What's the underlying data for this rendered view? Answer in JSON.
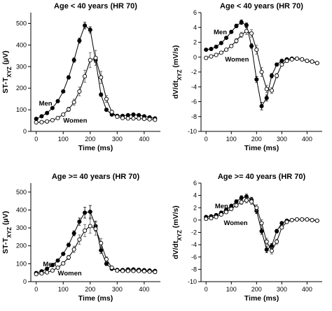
{
  "chart_data": [
    {
      "type": "scatter",
      "title": "Age < 40 years (HR 70)",
      "xlabel": "Time (ms)",
      "ylabel_main": "ST-T",
      "ylabel_sub": "XYZ",
      "ylabel_unit": " (µV)",
      "xlim": [
        -20,
        460
      ],
      "ylim": [
        0,
        550
      ],
      "xticks": [
        0,
        100,
        200,
        300,
        400
      ],
      "yticks": [
        0,
        100,
        200,
        300,
        400,
        500
      ],
      "grid": false,
      "series": [
        {
          "name": "Men",
          "marker": "filled",
          "color": "#000000",
          "x": [
            0,
            20,
            40,
            60,
            80,
            100,
            120,
            140,
            160,
            180,
            200,
            220,
            240,
            260,
            280,
            300,
            320,
            340,
            360,
            380,
            400,
            420,
            440
          ],
          "y": [
            58,
            70,
            85,
            108,
            140,
            185,
            250,
            330,
            420,
            490,
            470,
            330,
            170,
            100,
            78,
            72,
            72,
            75,
            78,
            75,
            70,
            65,
            60
          ],
          "err": [
            3,
            3,
            3,
            4,
            5,
            6,
            8,
            10,
            12,
            15,
            14,
            12,
            8,
            5,
            4,
            3,
            4,
            4,
            4,
            3,
            3,
            3,
            3
          ]
        },
        {
          "name": "Women",
          "marker": "open",
          "color": "#000000",
          "x": [
            0,
            20,
            40,
            60,
            80,
            100,
            120,
            140,
            160,
            180,
            200,
            220,
            240,
            260,
            280,
            300,
            320,
            340,
            360,
            380,
            400,
            420,
            440
          ],
          "y": [
            42,
            43,
            46,
            52,
            62,
            78,
            102,
            135,
            185,
            255,
            330,
            340,
            250,
            150,
            90,
            68,
            62,
            60,
            60,
            60,
            58,
            56,
            54
          ],
          "err": [
            3,
            3,
            3,
            4,
            5,
            6,
            10,
            14,
            20,
            28,
            35,
            35,
            28,
            16,
            8,
            5,
            4,
            4,
            4,
            3,
            3,
            3,
            3
          ]
        }
      ],
      "labels": [
        {
          "text": "Men",
          "x": 10,
          "y": 120
        },
        {
          "text": "Women",
          "x": 100,
          "y": 40
        }
      ]
    },
    {
      "type": "scatter",
      "title": "Age < 40 years (HR 70)",
      "xlabel": "Time (ms)",
      "ylabel_main": "dV/dt",
      "ylabel_sub": "XYZ",
      "ylabel_unit": " (mV/s)",
      "xlim": [
        -20,
        460
      ],
      "ylim": [
        -10,
        6
      ],
      "xticks": [
        0,
        100,
        200,
        300,
        400
      ],
      "yticks": [
        -10,
        -8,
        -6,
        -4,
        -2,
        0,
        2,
        4,
        6
      ],
      "grid": false,
      "series": [
        {
          "name": "Men",
          "marker": "filled",
          "color": "#000000",
          "x": [
            0,
            20,
            40,
            60,
            80,
            100,
            120,
            140,
            160,
            180,
            200,
            220,
            240,
            260,
            280,
            300,
            320,
            340,
            360,
            380,
            400,
            420,
            440
          ],
          "y": [
            1.0,
            1.1,
            1.4,
            1.9,
            2.6,
            3.4,
            4.2,
            4.7,
            4.3,
            1.5,
            -3.0,
            -6.6,
            -5.5,
            -2.5,
            -1.0,
            -0.5,
            -0.3,
            -0.2,
            -0.2,
            -0.3,
            -0.5,
            -0.6,
            -0.8
          ],
          "err": [
            0.1,
            0.1,
            0.1,
            0.1,
            0.15,
            0.2,
            0.25,
            0.3,
            0.3,
            0.3,
            0.4,
            0.5,
            0.4,
            0.3,
            0.2,
            0.1,
            0.1,
            0.1,
            0.1,
            0.1,
            0.1,
            0.1,
            0.1
          ]
        },
        {
          "name": "Women",
          "marker": "open",
          "color": "#000000",
          "x": [
            0,
            20,
            40,
            60,
            80,
            100,
            120,
            140,
            160,
            180,
            200,
            220,
            240,
            260,
            280,
            300,
            320,
            340,
            360,
            380,
            400,
            420,
            440
          ],
          "y": [
            -0.1,
            0.1,
            0.3,
            0.6,
            1.0,
            1.5,
            2.2,
            3.0,
            3.5,
            3.2,
            1.0,
            -2.0,
            -4.3,
            -4.5,
            -2.5,
            -1.0,
            -0.5,
            -0.3,
            -0.2,
            -0.3,
            -0.5,
            -0.6,
            -0.8
          ],
          "err": [
            0.1,
            0.1,
            0.1,
            0.1,
            0.15,
            0.2,
            0.3,
            0.35,
            0.45,
            0.5,
            0.6,
            0.6,
            0.5,
            0.4,
            0.3,
            0.2,
            0.1,
            0.1,
            0.1,
            0.1,
            0.1,
            0.1,
            0.1
          ]
        }
      ],
      "labels": [
        {
          "text": "Men",
          "x": 30,
          "y": 3.1
        },
        {
          "text": "Women",
          "x": 75,
          "y": -0.6
        }
      ]
    },
    {
      "type": "scatter",
      "title": "Age >= 40 years (HR 70)",
      "xlabel": "Time (ms)",
      "ylabel_main": "ST-T",
      "ylabel_sub": "XYZ",
      "ylabel_unit": " (µV)",
      "xlim": [
        -20,
        460
      ],
      "ylim": [
        0,
        550
      ],
      "xticks": [
        0,
        100,
        200,
        300,
        400
      ],
      "yticks": [
        0,
        100,
        200,
        300,
        400,
        500
      ],
      "grid": false,
      "series": [
        {
          "name": "Men",
          "marker": "filled",
          "color": "#000000",
          "x": [
            0,
            20,
            40,
            60,
            80,
            100,
            120,
            140,
            160,
            180,
            200,
            220,
            240,
            260,
            280,
            300,
            320,
            340,
            360,
            380,
            400,
            420,
            440
          ],
          "y": [
            48,
            58,
            72,
            92,
            118,
            155,
            205,
            270,
            335,
            385,
            390,
            310,
            175,
            100,
            72,
            65,
            65,
            68,
            68,
            66,
            64,
            62,
            60
          ],
          "err": [
            3,
            3,
            4,
            5,
            6,
            8,
            10,
            14,
            20,
            30,
            35,
            28,
            18,
            10,
            6,
            4,
            4,
            4,
            4,
            3,
            3,
            3,
            3
          ]
        },
        {
          "name": "Women",
          "marker": "open",
          "color": "#000000",
          "x": [
            0,
            20,
            40,
            60,
            80,
            100,
            120,
            140,
            160,
            180,
            200,
            220,
            240,
            260,
            280,
            300,
            320,
            340,
            360,
            380,
            400,
            420,
            440
          ],
          "y": [
            42,
            46,
            52,
            62,
            78,
            102,
            135,
            180,
            235,
            285,
            310,
            295,
            215,
            125,
            78,
            62,
            60,
            60,
            60,
            60,
            58,
            56,
            54
          ],
          "err": [
            3,
            3,
            4,
            5,
            6,
            8,
            12,
            18,
            26,
            34,
            40,
            36,
            26,
            14,
            7,
            4,
            4,
            4,
            4,
            3,
            3,
            3,
            3
          ]
        }
      ],
      "labels": [
        {
          "text": "Men",
          "x": 25,
          "y": 85
        },
        {
          "text": "Women",
          "x": 80,
          "y": 35
        }
      ]
    },
    {
      "type": "scatter",
      "title": "Age >= 40 years (HR 70)",
      "xlabel": "Time (ms)",
      "ylabel_main": "dV/dt",
      "ylabel_sub": "XYZ",
      "ylabel_unit": " (mV/s)",
      "xlim": [
        -20,
        460
      ],
      "ylim": [
        -10,
        6
      ],
      "xticks": [
        0,
        100,
        200,
        300,
        400
      ],
      "yticks": [
        -10,
        -8,
        -6,
        -4,
        -2,
        0,
        2,
        4,
        6
      ],
      "grid": false,
      "series": [
        {
          "name": "Men",
          "marker": "filled",
          "color": "#000000",
          "x": [
            0,
            20,
            40,
            60,
            80,
            100,
            120,
            140,
            160,
            180,
            200,
            220,
            240,
            260,
            280,
            300,
            320,
            340,
            360,
            380,
            400,
            420,
            440
          ],
          "y": [
            0.5,
            0.6,
            0.8,
            1.2,
            1.7,
            2.3,
            3.0,
            3.6,
            3.8,
            3.3,
            1.5,
            -1.8,
            -4.8,
            -4.2,
            -1.8,
            -0.5,
            -0.1,
            0.0,
            0.1,
            0.1,
            0.1,
            0.0,
            -0.1
          ],
          "err": [
            0.1,
            0.1,
            0.1,
            0.15,
            0.2,
            0.25,
            0.3,
            0.35,
            0.4,
            0.4,
            0.45,
            0.5,
            0.5,
            0.4,
            0.3,
            0.2,
            0.1,
            0.1,
            0.1,
            0.1,
            0.1,
            0.1,
            0.1
          ]
        },
        {
          "name": "Women",
          "marker": "open",
          "color": "#000000",
          "x": [
            0,
            20,
            40,
            60,
            80,
            100,
            120,
            140,
            160,
            180,
            200,
            220,
            240,
            260,
            280,
            300,
            320,
            340,
            360,
            380,
            400,
            420,
            440
          ],
          "y": [
            0.2,
            0.3,
            0.5,
            0.9,
            1.3,
            1.8,
            2.4,
            2.9,
            3.2,
            3.0,
            2.0,
            -0.5,
            -3.5,
            -5.0,
            -3.5,
            -1.2,
            -0.3,
            0.0,
            0.1,
            0.1,
            0.1,
            0.0,
            -0.1
          ],
          "err": [
            0.1,
            0.1,
            0.1,
            0.15,
            0.2,
            0.25,
            0.3,
            0.35,
            0.4,
            0.45,
            0.5,
            0.55,
            0.55,
            0.5,
            0.4,
            0.25,
            0.1,
            0.1,
            0.1,
            0.1,
            0.1,
            0.1,
            0.1
          ]
        }
      ],
      "labels": [
        {
          "text": "Men",
          "x": 35,
          "y": 1.9
        },
        {
          "text": "Women",
          "x": 70,
          "y": -0.8
        }
      ]
    }
  ]
}
